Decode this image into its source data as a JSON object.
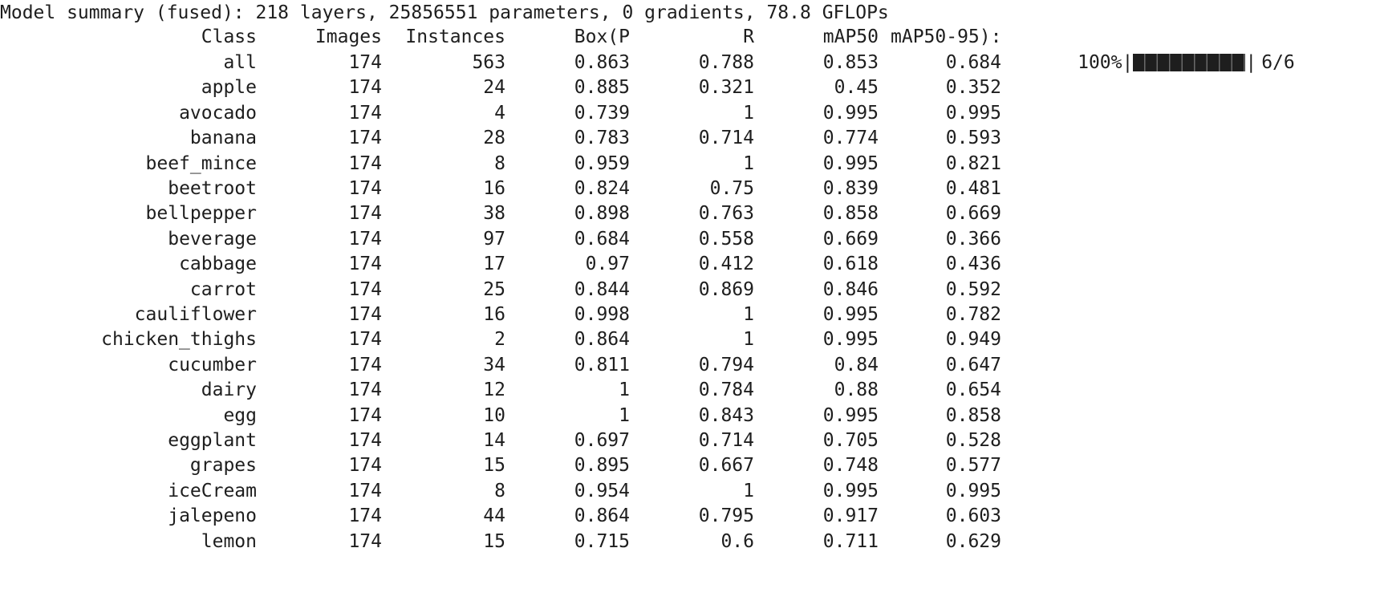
{
  "summary_line": "Model summary (fused): 218 layers, 25856551 parameters, 0 gradients, 78.8 GFLOPs",
  "headers": {
    "class": "Class",
    "images": "Images",
    "instances": "Instances",
    "box_p": "Box(P",
    "r": "R",
    "map50": "mAP50",
    "map50_95": "mAP50-95):"
  },
  "progress": {
    "percent_text": "100%",
    "left_sep": "|",
    "right_sep": "|",
    "count_text": "6/6",
    "fraction": 1.0
  },
  "rows": [
    {
      "class": "all",
      "images": "174",
      "instances": "563",
      "p": "0.863",
      "r": "0.788",
      "map50": "0.853",
      "map50_95": "0.684"
    },
    {
      "class": "apple",
      "images": "174",
      "instances": "24",
      "p": "0.885",
      "r": "0.321",
      "map50": "0.45",
      "map50_95": "0.352"
    },
    {
      "class": "avocado",
      "images": "174",
      "instances": "4",
      "p": "0.739",
      "r": "1",
      "map50": "0.995",
      "map50_95": "0.995"
    },
    {
      "class": "banana",
      "images": "174",
      "instances": "28",
      "p": "0.783",
      "r": "0.714",
      "map50": "0.774",
      "map50_95": "0.593"
    },
    {
      "class": "beef_mince",
      "images": "174",
      "instances": "8",
      "p": "0.959",
      "r": "1",
      "map50": "0.995",
      "map50_95": "0.821"
    },
    {
      "class": "beetroot",
      "images": "174",
      "instances": "16",
      "p": "0.824",
      "r": "0.75",
      "map50": "0.839",
      "map50_95": "0.481"
    },
    {
      "class": "bellpepper",
      "images": "174",
      "instances": "38",
      "p": "0.898",
      "r": "0.763",
      "map50": "0.858",
      "map50_95": "0.669"
    },
    {
      "class": "beverage",
      "images": "174",
      "instances": "97",
      "p": "0.684",
      "r": "0.558",
      "map50": "0.669",
      "map50_95": "0.366"
    },
    {
      "class": "cabbage",
      "images": "174",
      "instances": "17",
      "p": "0.97",
      "r": "0.412",
      "map50": "0.618",
      "map50_95": "0.436"
    },
    {
      "class": "carrot",
      "images": "174",
      "instances": "25",
      "p": "0.844",
      "r": "0.869",
      "map50": "0.846",
      "map50_95": "0.592"
    },
    {
      "class": "cauliflower",
      "images": "174",
      "instances": "16",
      "p": "0.998",
      "r": "1",
      "map50": "0.995",
      "map50_95": "0.782"
    },
    {
      "class": "chicken_thighs",
      "images": "174",
      "instances": "2",
      "p": "0.864",
      "r": "1",
      "map50": "0.995",
      "map50_95": "0.949"
    },
    {
      "class": "cucumber",
      "images": "174",
      "instances": "34",
      "p": "0.811",
      "r": "0.794",
      "map50": "0.84",
      "map50_95": "0.647"
    },
    {
      "class": "dairy",
      "images": "174",
      "instances": "12",
      "p": "1",
      "r": "0.784",
      "map50": "0.88",
      "map50_95": "0.654"
    },
    {
      "class": "egg",
      "images": "174",
      "instances": "10",
      "p": "1",
      "r": "0.843",
      "map50": "0.995",
      "map50_95": "0.858"
    },
    {
      "class": "eggplant",
      "images": "174",
      "instances": "14",
      "p": "0.697",
      "r": "0.714",
      "map50": "0.705",
      "map50_95": "0.528"
    },
    {
      "class": "grapes",
      "images": "174",
      "instances": "15",
      "p": "0.895",
      "r": "0.667",
      "map50": "0.748",
      "map50_95": "0.577"
    },
    {
      "class": "iceCream",
      "images": "174",
      "instances": "8",
      "p": "0.954",
      "r": "1",
      "map50": "0.995",
      "map50_95": "0.995"
    },
    {
      "class": "jalepeno",
      "images": "174",
      "instances": "44",
      "p": "0.864",
      "r": "0.795",
      "map50": "0.917",
      "map50_95": "0.603"
    },
    {
      "class": "lemon",
      "images": "174",
      "instances": "15",
      "p": "0.715",
      "r": "0.6",
      "map50": "0.711",
      "map50_95": "0.629"
    }
  ]
}
